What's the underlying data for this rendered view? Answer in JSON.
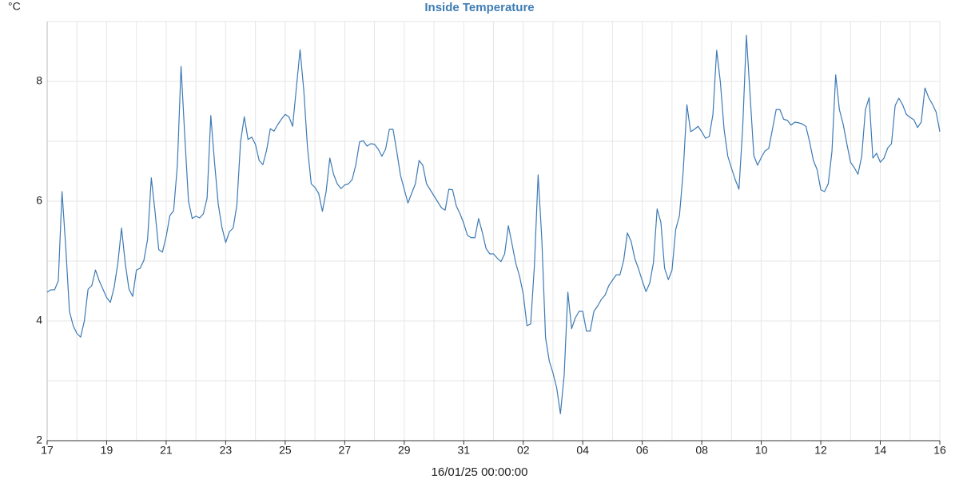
{
  "chart_data": {
    "type": "line",
    "title": "Inside Temperature",
    "ylabel": "°C",
    "xlabel": "16/01/25 00:00:00",
    "color": "#3d7ab5",
    "grid": true,
    "xlim": [
      0,
      30
    ],
    "ylim": [
      2,
      9
    ],
    "xticks": [
      {
        "value": 0,
        "label": "17"
      },
      {
        "value": 2,
        "label": "19"
      },
      {
        "value": 4,
        "label": "21"
      },
      {
        "value": 6,
        "label": "23"
      },
      {
        "value": 8,
        "label": "25"
      },
      {
        "value": 10,
        "label": "27"
      },
      {
        "value": 12,
        "label": "29"
      },
      {
        "value": 14,
        "label": "31"
      },
      {
        "value": 16,
        "label": "02"
      },
      {
        "value": 18,
        "label": "04"
      },
      {
        "value": 20,
        "label": "06"
      },
      {
        "value": 22,
        "label": "08"
      },
      {
        "value": 24,
        "label": "10"
      },
      {
        "value": 26,
        "label": "12"
      },
      {
        "value": 28,
        "label": "14"
      },
      {
        "value": 30,
        "label": "16"
      }
    ],
    "x_minor_ticks": [
      1,
      3,
      5,
      7,
      9,
      11,
      13,
      15,
      17,
      19,
      21,
      23,
      25,
      27,
      29
    ],
    "yticks": [
      2,
      4,
      6,
      8
    ],
    "y_minor_ticks": [
      3,
      5,
      7,
      9
    ],
    "x": [
      0,
      0.125,
      0.25,
      0.375,
      0.5,
      0.625,
      0.75,
      0.875,
      1,
      1.125,
      1.25,
      1.375,
      1.5,
      1.625,
      1.75,
      1.875,
      2,
      2.125,
      2.25,
      2.375,
      2.5,
      2.625,
      2.75,
      2.875,
      3,
      3.125,
      3.25,
      3.375,
      3.5,
      3.625,
      3.75,
      3.875,
      4,
      4.125,
      4.25,
      4.375,
      4.5,
      4.625,
      4.75,
      4.875,
      5,
      5.125,
      5.25,
      5.375,
      5.5,
      5.625,
      5.75,
      5.875,
      6,
      6.125,
      6.25,
      6.375,
      6.5,
      6.625,
      6.75,
      6.875,
      7,
      7.125,
      7.25,
      7.375,
      7.5,
      7.625,
      7.75,
      7.875,
      8,
      8.125,
      8.25,
      8.375,
      8.5,
      8.625,
      8.75,
      8.875,
      9,
      9.125,
      9.25,
      9.375,
      9.5,
      9.625,
      9.75,
      9.875,
      10,
      10.125,
      10.25,
      10.375,
      10.5,
      10.625,
      10.75,
      10.875,
      11,
      11.125,
      11.25,
      11.375,
      11.5,
      11.625,
      11.75,
      11.875,
      12,
      12.125,
      12.25,
      12.375,
      12.5,
      12.625,
      12.75,
      12.875,
      13,
      13.125,
      13.25,
      13.375,
      13.5,
      13.625,
      13.75,
      13.875,
      14,
      14.125,
      14.25,
      14.375,
      14.5,
      14.625,
      14.75,
      14.875,
      15,
      15.125,
      15.25,
      15.375,
      15.5,
      15.625,
      15.75,
      15.875,
      16,
      16.125,
      16.25,
      16.375,
      16.5,
      16.625,
      16.75,
      16.875,
      17,
      17.125,
      17.25,
      17.375,
      17.5,
      17.625,
      17.75,
      17.875,
      18,
      18.125,
      18.25,
      18.375,
      18.5,
      18.625,
      18.75,
      18.875,
      19,
      19.125,
      19.25,
      19.375,
      19.5,
      19.625,
      19.75,
      19.875,
      20,
      20.125,
      20.25,
      20.375,
      20.5,
      20.625,
      20.75,
      20.875,
      21,
      21.125,
      21.25,
      21.375,
      21.5,
      21.625,
      21.75,
      21.875,
      22,
      22.125,
      22.25,
      22.375,
      22.5,
      22.625,
      22.75,
      22.875,
      23,
      23.125,
      23.25,
      23.375,
      23.5,
      23.625,
      23.75,
      23.875,
      24,
      24.125,
      24.25,
      24.375,
      24.5,
      24.625,
      24.75,
      24.875,
      25,
      25.125,
      25.25,
      25.375,
      25.5,
      25.625,
      25.75,
      25.875,
      26,
      26.125,
      26.25,
      26.375,
      26.5,
      26.625,
      26.75,
      26.875,
      27,
      27.125,
      27.25,
      27.375,
      27.5,
      27.625,
      27.75,
      27.875,
      28,
      28.125,
      28.25,
      28.375,
      28.5,
      28.625,
      28.75,
      28.875,
      29,
      29.125,
      29.25,
      29.375,
      29.5,
      29.625,
      29.75,
      29.875,
      30
    ],
    "values": [
      4.48,
      4.52,
      4.52,
      4.67,
      6.16,
      5.23,
      4.16,
      3.92,
      3.79,
      3.73,
      4.0,
      4.53,
      4.59,
      4.85,
      4.67,
      4.53,
      4.39,
      4.31,
      4.56,
      4.96,
      5.55,
      4.96,
      4.53,
      4.41,
      4.85,
      4.88,
      5.01,
      5.36,
      6.39,
      5.83,
      5.19,
      5.15,
      5.41,
      5.76,
      5.84,
      6.59,
      8.25,
      7.09,
      6.0,
      5.71,
      5.75,
      5.72,
      5.79,
      6.05,
      7.43,
      6.65,
      5.95,
      5.56,
      5.31,
      5.49,
      5.55,
      5.93,
      6.99,
      7.41,
      7.03,
      7.07,
      6.95,
      6.68,
      6.61,
      6.85,
      7.21,
      7.17,
      7.28,
      7.37,
      7.45,
      7.41,
      7.25,
      7.89,
      8.53,
      7.85,
      6.89,
      6.29,
      6.23,
      6.13,
      5.83,
      6.16,
      6.72,
      6.45,
      6.29,
      6.21,
      6.27,
      6.29,
      6.36,
      6.61,
      6.99,
      7.01,
      6.92,
      6.96,
      6.95,
      6.87,
      6.75,
      6.87,
      7.2,
      7.2,
      6.83,
      6.43,
      6.2,
      5.97,
      6.13,
      6.29,
      6.68,
      6.6,
      6.29,
      6.19,
      6.09,
      5.99,
      5.89,
      5.85,
      6.2,
      6.19,
      5.92,
      5.79,
      5.63,
      5.43,
      5.39,
      5.39,
      5.71,
      5.48,
      5.21,
      5.12,
      5.12,
      5.05,
      4.99,
      5.12,
      5.59,
      5.28,
      4.96,
      4.75,
      4.45,
      3.92,
      3.95,
      4.92,
      6.44,
      5.36,
      3.72,
      3.33,
      3.13,
      2.88,
      2.45,
      3.09,
      4.48,
      3.87,
      4.05,
      4.16,
      4.16,
      3.83,
      3.83,
      4.16,
      4.25,
      4.36,
      4.43,
      4.59,
      4.68,
      4.77,
      4.77,
      5.01,
      5.47,
      5.33,
      5.04,
      4.87,
      4.67,
      4.49,
      4.63,
      4.97,
      5.87,
      5.65,
      4.88,
      4.69,
      4.85,
      5.53,
      5.76,
      6.49,
      7.61,
      7.16,
      7.2,
      7.25,
      7.16,
      7.05,
      7.08,
      7.45,
      8.52,
      7.99,
      7.2,
      6.75,
      6.55,
      6.36,
      6.2,
      7.23,
      8.77,
      7.76,
      6.76,
      6.6,
      6.73,
      6.84,
      6.88,
      7.2,
      7.53,
      7.53,
      7.37,
      7.35,
      7.27,
      7.32,
      7.31,
      7.29,
      7.25,
      6.99,
      6.68,
      6.53,
      6.19,
      6.16,
      6.29,
      6.83,
      8.11,
      7.53,
      7.29,
      6.96,
      6.65,
      6.56,
      6.45,
      6.75,
      7.53,
      7.73,
      6.72,
      6.8,
      6.65,
      6.72,
      6.89,
      6.96,
      7.6,
      7.72,
      7.61,
      7.45,
      7.4,
      7.36,
      7.23,
      7.32,
      7.89,
      7.73,
      7.62,
      7.49,
      7.16
    ]
  }
}
